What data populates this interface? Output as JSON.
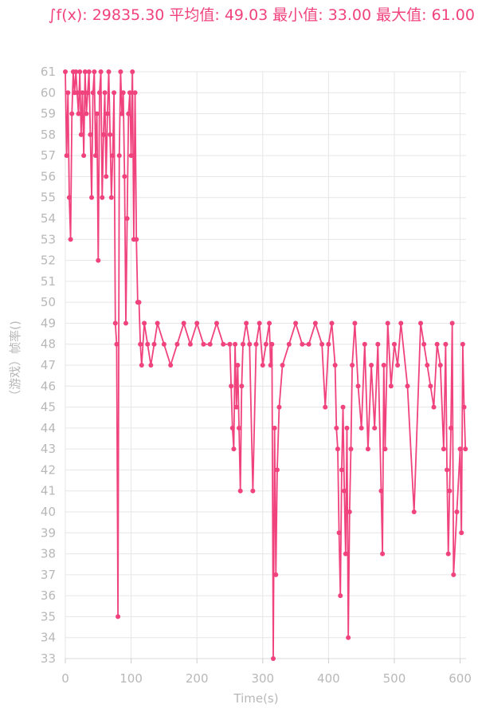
{
  "header": {
    "text": "∫f(x): 29835.30 平均值: 49.03 最小值: 33.00 最大值: 61.00"
  },
  "colors": {
    "series": "#f0437d",
    "grid": "#e6e6e6",
    "axis_text": "#b8b8b8"
  },
  "chart_data": {
    "type": "line",
    "xlabel": "Time(s)",
    "ylabel": "（游戏）帧率()",
    "xlim": [
      0,
      609
    ],
    "ylim": [
      33,
      61
    ],
    "x_ticks": [
      0,
      100,
      200,
      300,
      400,
      500,
      600
    ],
    "y_ticks": [
      33,
      34,
      35,
      36,
      37,
      38,
      39,
      40,
      41,
      42,
      43,
      44,
      45,
      46,
      47,
      48,
      49,
      50,
      51,
      52,
      53,
      54,
      55,
      56,
      57,
      58,
      59,
      60,
      61
    ],
    "grid": true,
    "markers": true,
    "series": [
      {
        "x": [
          0,
          2,
          4,
          6,
          8,
          10,
          12,
          14,
          16,
          18,
          20,
          22,
          24,
          26,
          28,
          30,
          32,
          34,
          36,
          38,
          40,
          42,
          44,
          46,
          48,
          50,
          52,
          54,
          56,
          58,
          60,
          62,
          64,
          66,
          68,
          70,
          72,
          74,
          76,
          78,
          80,
          82,
          84,
          86,
          88,
          90,
          92,
          94,
          96,
          98,
          100,
          102,
          104,
          106,
          108,
          110,
          112,
          114,
          116,
          120,
          125,
          130,
          135,
          140,
          150,
          160,
          170,
          180,
          190,
          200,
          210,
          220,
          230,
          240,
          250,
          252,
          254,
          256,
          258,
          260,
          262,
          264,
          266,
          268,
          270,
          275,
          280,
          285,
          290,
          295,
          300,
          305,
          310,
          312,
          314,
          316,
          318,
          320,
          322,
          325,
          330,
          340,
          350,
          360,
          370,
          380,
          390,
          395,
          400,
          405,
          410,
          412,
          414,
          416,
          418,
          420,
          422,
          424,
          426,
          428,
          430,
          432,
          434,
          436,
          440,
          445,
          450,
          455,
          460,
          465,
          470,
          475,
          480,
          482,
          484,
          486,
          490,
          495,
          500,
          505,
          510,
          520,
          530,
          540,
          545,
          550,
          555,
          560,
          565,
          570,
          575,
          578,
          580,
          582,
          584,
          586,
          588,
          590,
          595,
          600,
          602,
          604,
          606,
          608
        ],
        "y": [
          61,
          57,
          60,
          55,
          53,
          59,
          61,
          60,
          61,
          60,
          59,
          61,
          58,
          60,
          57,
          61,
          59,
          60,
          61,
          58,
          55,
          60,
          61,
          57,
          59,
          52,
          60,
          61,
          55,
          58,
          60,
          56,
          59,
          61,
          58,
          55,
          57,
          60,
          49,
          48,
          35,
          57,
          61,
          59,
          60,
          56,
          49,
          54,
          59,
          60,
          57,
          61,
          53,
          60,
          53,
          50,
          50,
          48,
          47,
          49,
          48,
          47,
          48,
          49,
          48,
          47,
          48,
          49,
          48,
          49,
          48,
          48,
          49,
          48,
          48,
          46,
          44,
          43,
          48,
          45,
          47,
          44,
          41,
          46,
          48,
          49,
          48,
          41,
          48,
          49,
          47,
          48,
          49,
          47,
          48,
          33,
          44,
          37,
          42,
          45,
          47,
          48,
          49,
          48,
          48,
          49,
          48,
          45,
          48,
          49,
          47,
          44,
          43,
          39,
          36,
          42,
          45,
          41,
          38,
          44,
          34,
          40,
          43,
          47,
          49,
          46,
          44,
          48,
          43,
          47,
          44,
          48,
          41,
          38,
          47,
          43,
          49,
          46,
          48,
          47,
          49,
          46,
          40,
          49,
          48,
          47,
          46,
          45,
          48,
          47,
          43,
          48,
          42,
          38,
          41,
          44,
          49,
          37,
          40,
          43,
          39,
          48,
          45,
          43
        ]
      }
    ]
  }
}
